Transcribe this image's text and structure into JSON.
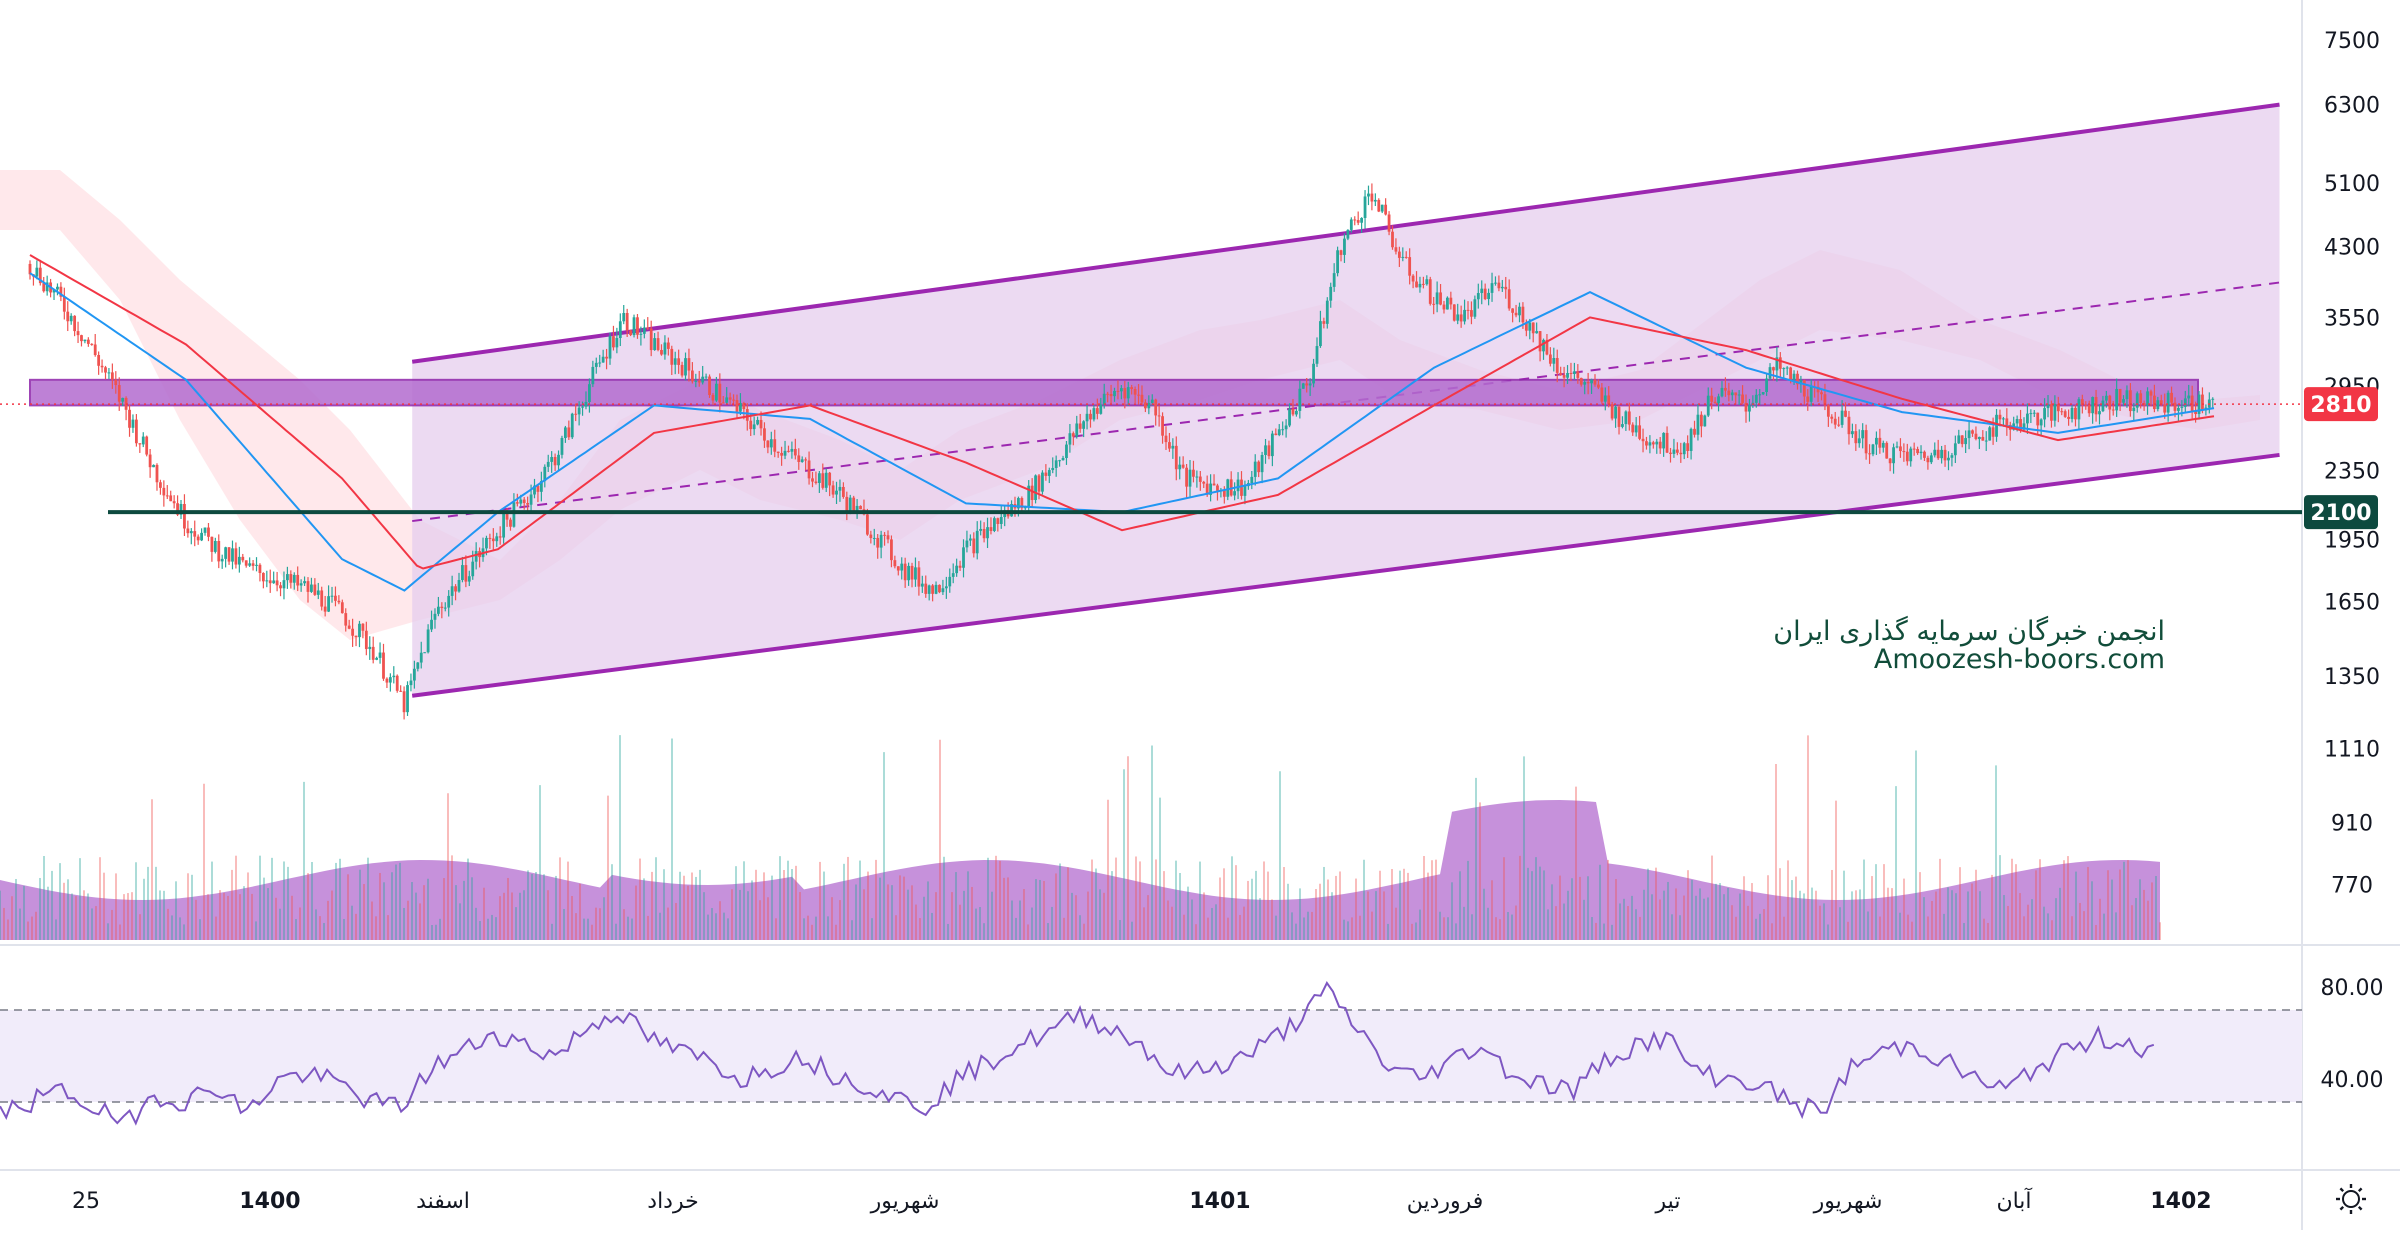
{
  "colors": {
    "channel_fill": "#e6cdee",
    "channel_line": "#9c27b0",
    "zone": "#b36ccf",
    "support_line": "#0d4a3f",
    "bull": "#26a69a",
    "bear": "#ef5350",
    "ma_fast": "#f23645",
    "ma_slow": "#2196f3",
    "rsi_line": "#7e57c2",
    "rsi_band": "#f1ecfa",
    "volume_area": "#b36ccf",
    "current_price_badge": "#f23645",
    "support_badge": "#0d4a3f"
  },
  "price_axis": {
    "labels": [
      "7500",
      "6300",
      "5100",
      "4300",
      "3550",
      "2950",
      "2350",
      "1950",
      "1650",
      "1350",
      "1110",
      "910",
      "770"
    ],
    "scale": "log"
  },
  "rsi_axis": {
    "labels": [
      "80.00",
      "40.00"
    ]
  },
  "badges": {
    "current_price": "2810",
    "support_level": "2100"
  },
  "time_axis": {
    "labels": [
      {
        "text": "25",
        "bold": false
      },
      {
        "text": "1400",
        "bold": true
      },
      {
        "text": "اسفند",
        "bold": false
      },
      {
        "text": "خرداد",
        "bold": false
      },
      {
        "text": "شهریور",
        "bold": false
      },
      {
        "text": "1401",
        "bold": true
      },
      {
        "text": "فروردین",
        "bold": false
      },
      {
        "text": "تیر",
        "bold": false
      },
      {
        "text": "شهریور",
        "bold": false
      },
      {
        "text": "آبان",
        "bold": false
      },
      {
        "text": "1402",
        "bold": true
      }
    ]
  },
  "watermark": {
    "line1": "انجمن خبرگان سرمایه گذاری ایران",
    "line2": "Amoozesh-boors.com"
  },
  "settings_icon": "sun-gear-icon",
  "chart_data": {
    "type": "candlestick",
    "title": "",
    "y_scale": "log",
    "ylim": [
      700,
      8000
    ],
    "series": [
      {
        "name": "",
        "x": [
          0,
          20,
          40,
          60,
          80,
          100,
          120,
          140,
          160,
          180,
          200,
          220,
          240,
          260,
          280,
          300,
          320,
          340,
          360,
          380,
          400,
          420,
          440,
          460,
          480,
          500,
          520,
          540,
          560,
          580,
          600,
          620,
          640,
          660,
          680,
          700,
          720,
          740,
          760,
          780,
          800,
          820,
          840,
          860,
          880,
          900,
          920,
          940,
          960,
          980,
          1000,
          1020,
          1040,
          1060,
          1080,
          1100,
          1120,
          1140,
          1160,
          1180,
          1200,
          1220,
          1240,
          1260,
          1280,
          1300,
          1320,
          1340,
          1360,
          1380,
          1400
        ],
        "values": [
          4100,
          3700,
          3250,
          2800,
          2350,
          2050,
          1900,
          1800,
          1750,
          1700,
          1600,
          1450,
          1250,
          1600,
          1800,
          2000,
          2200,
          2500,
          3000,
          3550,
          3300,
          3100,
          2900,
          2700,
          2500,
          2350,
          2200,
          2000,
          1800,
          1700,
          1900,
          2050,
          2200,
          2450,
          2750,
          2950,
          2800,
          2300,
          2250,
          2250,
          2600,
          3000,
          4300,
          5000,
          4100,
          3750,
          3550,
          3900,
          3500,
          3100,
          2950,
          2700,
          2550,
          2500,
          2900,
          2800,
          3100,
          2900,
          2700,
          2500,
          2450,
          2450,
          2550,
          2650,
          2700,
          2750,
          2800,
          2850,
          2820,
          2810,
          2810
        ]
      },
      {
        "name": "",
        "x": [
          0,
          100,
          200,
          240,
          300,
          400,
          500,
          600,
          700,
          800,
          900,
          1000,
          1100,
          1200,
          1300,
          1400
        ],
        "values": [
          4000,
          3000,
          1850,
          1700,
          2100,
          2800,
          2700,
          2150,
          2100,
          2300,
          3100,
          3800,
          3100,
          2750,
          2600,
          2780
        ]
      },
      {
        "name": "",
        "x": [
          0,
          100,
          200,
          250,
          300,
          400,
          500,
          600,
          700,
          800,
          900,
          1000,
          1100,
          1200,
          1300,
          1400
        ],
        "values": [
          4200,
          3300,
          2300,
          1800,
          1900,
          2600,
          2800,
          2400,
          2000,
          2200,
          2800,
          3550,
          3250,
          2850,
          2550,
          2720
        ]
      }
    ],
    "channel": {
      "upper": [
        [
          245,
          3150
        ],
        [
          1442,
          6300
        ]
      ],
      "lower": [
        [
          245,
          1280
        ],
        [
          1442,
          2450
        ]
      ],
      "mid_dashed": [
        [
          245,
          2050
        ],
        [
          1442,
          3900
        ]
      ]
    },
    "resistance_zone": [
      2800,
      3000
    ],
    "support_level": 2100,
    "rsi": {
      "range": [
        0,
        100
      ],
      "bands": [
        30,
        70
      ],
      "labels_shown": [
        80,
        40
      ],
      "values": [
        25,
        30,
        35,
        28,
        20,
        33,
        30,
        37,
        25,
        40,
        42,
        38,
        30,
        28,
        45,
        52,
        60,
        55,
        50,
        62,
        70,
        58,
        52,
        48,
        40,
        45,
        50,
        42,
        38,
        32,
        28,
        40,
        47,
        55,
        60,
        68,
        62,
        55,
        42,
        44,
        48,
        55,
        65,
        78,
        62,
        45,
        40,
        48,
        55,
        42,
        38,
        35,
        48,
        55,
        58,
        43,
        40,
        38,
        30,
        25,
        45,
        52,
        55,
        48,
        40,
        35,
        45,
        52,
        58,
        56,
        50
      ]
    }
  }
}
